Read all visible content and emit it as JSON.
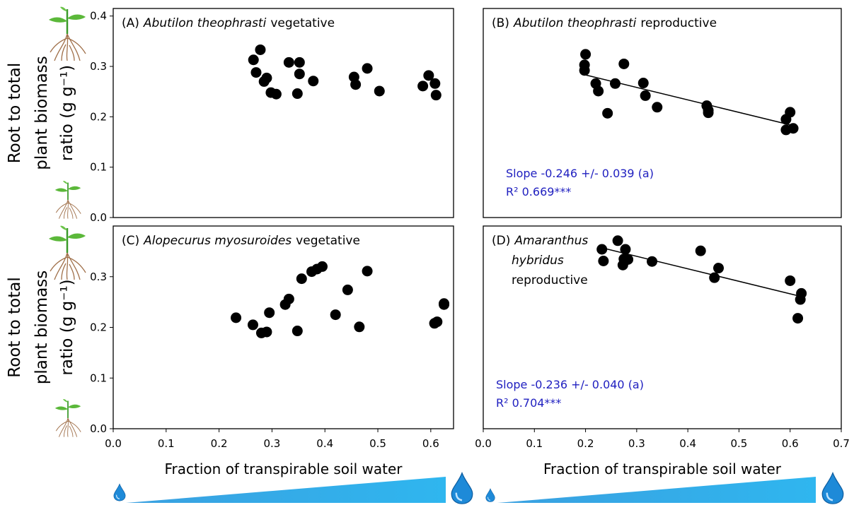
{
  "chart_data": [
    {
      "type": "scatter",
      "panel_label": "(A)",
      "species": "Abutilon theophrasti",
      "stage": "vegetative",
      "ylabel": [
        "Root to total",
        "plant biomass",
        "ratio (g g⁻¹)"
      ],
      "x": [
        0.265,
        0.278,
        0.27,
        0.285,
        0.29,
        0.298,
        0.308,
        0.332,
        0.352,
        0.352,
        0.348,
        0.378,
        0.455,
        0.458,
        0.48,
        0.503,
        0.585,
        0.596,
        0.608,
        0.61
      ],
      "values": [
        0.313,
        0.333,
        0.288,
        0.27,
        0.277,
        0.248,
        0.245,
        0.308,
        0.308,
        0.285,
        0.246,
        0.271,
        0.279,
        0.264,
        0.296,
        0.251,
        0.261,
        0.282,
        0.266,
        0.243
      ],
      "color": "#000000",
      "xlim": [
        0,
        0.643
      ],
      "ylim": [
        0,
        0.415
      ],
      "yticks": [
        {
          "value": 0,
          "label": "0.0"
        },
        0.1,
        0.2,
        0.3,
        0.4
      ]
    },
    {
      "type": "scatter",
      "panel_label": "(B)",
      "species": "Abutilon theophrasti",
      "stage": "reproductive",
      "x": [
        0.198,
        0.198,
        0.2,
        0.22,
        0.225,
        0.243,
        0.258,
        0.275,
        0.313,
        0.317,
        0.34,
        0.437,
        0.44,
        0.44,
        0.592,
        0.592,
        0.6,
        0.606
      ],
      "values": [
        0.292,
        0.303,
        0.324,
        0.266,
        0.251,
        0.207,
        0.266,
        0.305,
        0.267,
        0.242,
        0.219,
        0.222,
        0.213,
        0.208,
        0.195,
        0.174,
        0.209,
        0.177
      ],
      "fit": {
        "x": [
          0.2,
          0.6
        ],
        "values": [
          0.283,
          0.184
        ]
      },
      "annotations": [
        "Slope -0.246 +/- 0.039 (a)",
        "R² 0.669***"
      ],
      "annotation_color": "#2020c0",
      "color": "#000000",
      "xlim": [
        0,
        0.7
      ],
      "ylim": [
        0,
        0.415
      ]
    },
    {
      "type": "scatter",
      "panel_label": "(C)",
      "species": "Alopecurus myosuroides",
      "stage": "vegetative",
      "ylabel": [
        "Root to total",
        "plant biomass",
        "ratio (g g⁻¹)"
      ],
      "xlabel": "Fraction of transpirable soil water",
      "x": [
        0.232,
        0.264,
        0.28,
        0.29,
        0.295,
        0.325,
        0.332,
        0.348,
        0.356,
        0.375,
        0.385,
        0.395,
        0.42,
        0.443,
        0.465,
        0.48,
        0.607,
        0.612,
        0.625,
        0.625
      ],
      "values": [
        0.219,
        0.205,
        0.189,
        0.191,
        0.229,
        0.245,
        0.256,
        0.193,
        0.296,
        0.31,
        0.315,
        0.32,
        0.225,
        0.274,
        0.201,
        0.311,
        0.208,
        0.211,
        0.247,
        0.245
      ],
      "color": "#000000",
      "xlim": [
        0,
        0.643
      ],
      "ylim": [
        0,
        0.4
      ],
      "xticks": [
        {
          "value": 0,
          "label": "0.0"
        },
        0.1,
        0.2,
        0.3,
        0.4,
        0.5,
        0.6
      ],
      "yticks": [
        {
          "value": 0,
          "label": "0.0"
        },
        0.1,
        0.2,
        0.3
      ]
    },
    {
      "type": "scatter",
      "panel_label": "(D)",
      "species": [
        "Amaranthus",
        "hybridus"
      ],
      "stage": "reproductive",
      "xlabel": "Fraction of transpirable soil water",
      "x": [
        0.232,
        0.235,
        0.263,
        0.273,
        0.275,
        0.278,
        0.283,
        0.33,
        0.425,
        0.452,
        0.46,
        0.6,
        0.62,
        0.622,
        0.615
      ],
      "values": [
        0.354,
        0.331,
        0.371,
        0.323,
        0.335,
        0.354,
        0.334,
        0.33,
        0.351,
        0.298,
        0.317,
        0.292,
        0.255,
        0.267,
        0.218
      ],
      "fit": {
        "x": [
          0.228,
          0.617
        ],
        "values": [
          0.358,
          0.262
        ]
      },
      "annotations": [
        "Slope -0.236 +/- 0.040 (a)",
        "R² 0.704***"
      ],
      "annotation_color": "#2020c0",
      "color": "#000000",
      "xlim": [
        0,
        0.7
      ],
      "ylim": [
        0,
        0.4
      ],
      "xticks": [
        {
          "value": 0,
          "label": "0.0"
        },
        0.1,
        0.2,
        0.3,
        0.4,
        0.5,
        0.6,
        0.7
      ]
    }
  ]
}
